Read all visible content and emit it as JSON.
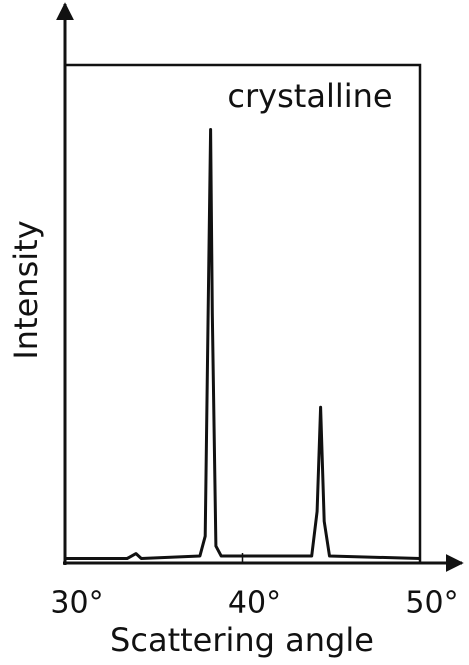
{
  "chart_data": {
    "type": "line",
    "annotation": "crystalline",
    "xlabel": "Scattering angle",
    "ylabel": "Intensity",
    "x": [
      30,
      33.5,
      34,
      34.3,
      37.6,
      37.9,
      38.1,
      38.2,
      38.3,
      38.5,
      38.8,
      43.9,
      44.2,
      44.4,
      44.6,
      44.9,
      50
    ],
    "values": [
      0.5,
      0.5,
      1.5,
      0.5,
      1,
      5,
      60,
      87,
      50,
      3,
      1,
      1,
      10,
      31,
      8,
      1,
      0.5
    ],
    "color": "#111111",
    "xlim": [
      30,
      50
    ],
    "ylim": [
      0,
      100
    ],
    "xticks": [
      {
        "value": 30,
        "label": "30°"
      },
      {
        "value": 40,
        "label": "40°"
      },
      {
        "value": 50,
        "label": "50°"
      }
    ]
  }
}
